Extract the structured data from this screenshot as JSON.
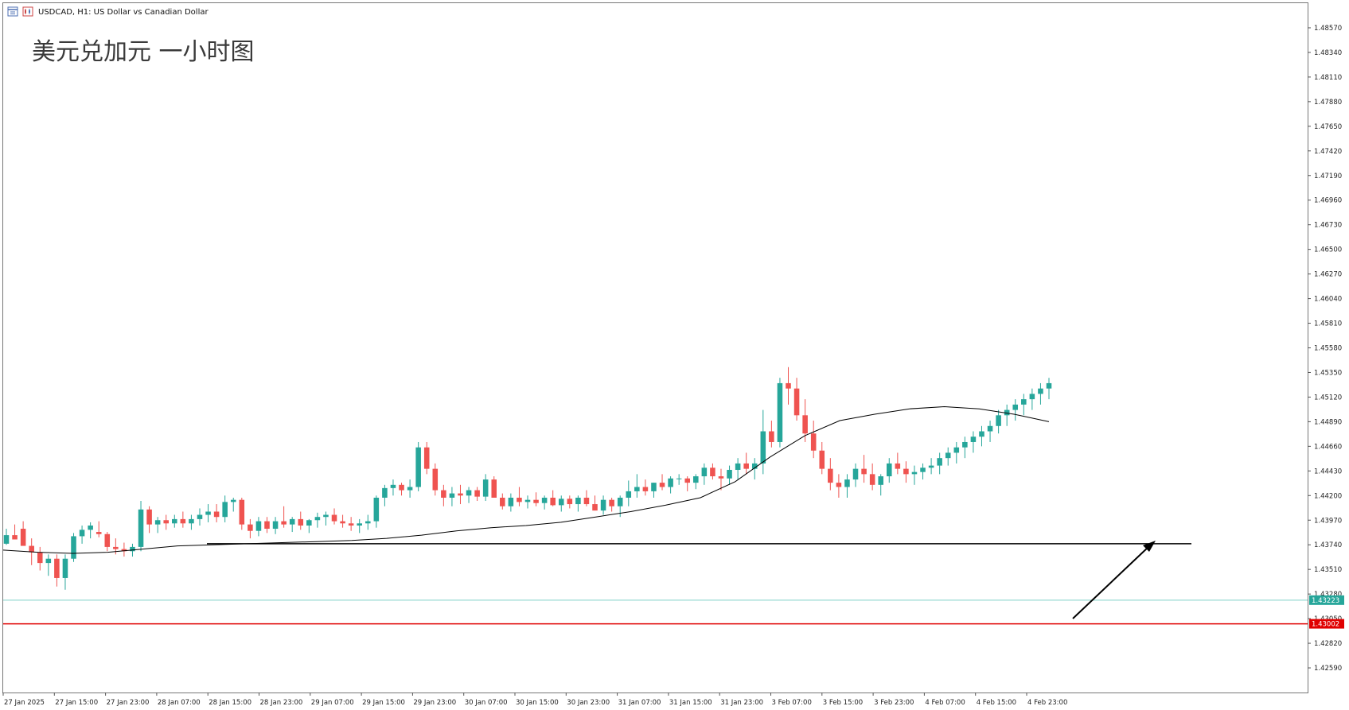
{
  "header": {
    "symbol_line": "USDCAD, H1:  US Dollar vs Canadian Dollar",
    "chart_title": "美元兑加元 一小时图"
  },
  "colors": {
    "bull": "#26a69a",
    "bear": "#ef5350",
    "current_price_line": "#7fd1c6",
    "support_line": "#e00000",
    "moving_average": "#000000",
    "horizontal_level": "#000000",
    "arrow": "#000000"
  },
  "chart_data": {
    "type": "candlestick",
    "title": "美元兑加元 一小时图",
    "instrument": "USDCAD",
    "timeframe": "H1",
    "ylim": [
      1.4236,
      1.488
    ],
    "price_ticks": [
      "1.48570",
      "1.48340",
      "1.48110",
      "1.47880",
      "1.47650",
      "1.47420",
      "1.47190",
      "1.46960",
      "1.46730",
      "1.46500",
      "1.46270",
      "1.46040",
      "1.45810",
      "1.45580",
      "1.45350",
      "1.45120",
      "1.44890",
      "1.44660",
      "1.44430",
      "1.44200",
      "1.43970",
      "1.43740",
      "1.43510",
      "1.43280",
      "1.43050",
      "1.42820",
      "1.42590"
    ],
    "time_labels": [
      "27 Jan 2025",
      "27 Jan 15:00",
      "27 Jan 23:00",
      "28 Jan 07:00",
      "28 Jan 15:00",
      "28 Jan 23:00",
      "29 Jan 07:00",
      "29 Jan 15:00",
      "29 Jan 23:00",
      "30 Jan 07:00",
      "30 Jan 15:00",
      "30 Jan 23:00",
      "31 Jan 07:00",
      "31 Jan 15:00",
      "31 Jan 23:00",
      "3 Feb 07:00",
      "3 Feb 15:00",
      "3 Feb 23:00",
      "4 Feb 07:00",
      "4 Feb 15:00",
      "4 Feb 23:00"
    ],
    "current_price": "1.43223",
    "support_price": "1.43002",
    "horizontal_level": 1.4375,
    "moving_average": [
      1.4369,
      1.4367,
      1.4366,
      1.4367,
      1.437,
      1.4373,
      1.4374,
      1.4375,
      1.4376,
      1.4377,
      1.4378,
      1.438,
      1.4383,
      1.4387,
      1.439,
      1.4392,
      1.4395,
      1.44,
      1.4405,
      1.4411,
      1.4418,
      1.4433,
      1.4456,
      1.4476,
      1.449,
      1.4496,
      1.4501,
      1.4503,
      1.4501,
      1.4496,
      1.4489
    ],
    "candles": [
      [
        1.4375,
        1.4389,
        1.4374,
        1.4383
      ],
      [
        1.4383,
        1.4393,
        1.4379,
        1.4379
      ],
      [
        1.4389,
        1.4396,
        1.4376,
        1.4373
      ],
      [
        1.4373,
        1.438,
        1.4355,
        1.4367
      ],
      [
        1.4367,
        1.4372,
        1.435,
        1.4357
      ],
      [
        1.4357,
        1.4365,
        1.4345,
        1.4361
      ],
      [
        1.4361,
        1.4365,
        1.4335,
        1.4343
      ],
      [
        1.4343,
        1.4365,
        1.4332,
        1.4361
      ],
      [
        1.4361,
        1.4385,
        1.4358,
        1.4382
      ],
      [
        1.4382,
        1.4392,
        1.4375,
        1.4388
      ],
      [
        1.4388,
        1.4395,
        1.438,
        1.4392
      ],
      [
        1.4386,
        1.4396,
        1.4381,
        1.4384
      ],
      [
        1.4384,
        1.4386,
        1.4368,
        1.4372
      ],
      [
        1.4372,
        1.438,
        1.4365,
        1.437
      ],
      [
        1.437,
        1.4376,
        1.4363,
        1.4368
      ],
      [
        1.4368,
        1.4375,
        1.4363,
        1.4372
      ],
      [
        1.4372,
        1.4415,
        1.4368,
        1.4407
      ],
      [
        1.4407,
        1.441,
        1.4385,
        1.4393
      ],
      [
        1.4393,
        1.44,
        1.4385,
        1.4397
      ],
      [
        1.4397,
        1.4402,
        1.4388,
        1.4394
      ],
      [
        1.4394,
        1.4402,
        1.439,
        1.4398
      ],
      [
        1.4398,
        1.4405,
        1.439,
        1.4394
      ],
      [
        1.4394,
        1.4402,
        1.4388,
        1.4398
      ],
      [
        1.4398,
        1.4408,
        1.4392,
        1.4402
      ],
      [
        1.4402,
        1.4412,
        1.4395,
        1.4405
      ],
      [
        1.4405,
        1.4412,
        1.4395,
        1.44
      ],
      [
        1.44,
        1.442,
        1.4395,
        1.4414
      ],
      [
        1.4414,
        1.4418,
        1.4405,
        1.4416
      ],
      [
        1.4416,
        1.4418,
        1.4388,
        1.4393
      ],
      [
        1.4393,
        1.4398,
        1.438,
        1.4387
      ],
      [
        1.4387,
        1.44,
        1.4382,
        1.4396
      ],
      [
        1.4396,
        1.44,
        1.4385,
        1.4389
      ],
      [
        1.4389,
        1.44,
        1.4384,
        1.4396
      ],
      [
        1.4396,
        1.441,
        1.439,
        1.4393
      ],
      [
        1.4393,
        1.44,
        1.4386,
        1.4398
      ],
      [
        1.4398,
        1.4405,
        1.4388,
        1.4392
      ],
      [
        1.4392,
        1.4398,
        1.4385,
        1.4397
      ],
      [
        1.4397,
        1.4404,
        1.439,
        1.44
      ],
      [
        1.44,
        1.4405,
        1.4392,
        1.4402
      ],
      [
        1.4402,
        1.4408,
        1.4393,
        1.4396
      ],
      [
        1.4396,
        1.4402,
        1.439,
        1.4394
      ],
      [
        1.4394,
        1.44,
        1.4387,
        1.4392
      ],
      [
        1.4392,
        1.4398,
        1.4385,
        1.4394
      ],
      [
        1.4394,
        1.4402,
        1.4388,
        1.4396
      ],
      [
        1.4396,
        1.442,
        1.439,
        1.4418
      ],
      [
        1.4418,
        1.443,
        1.441,
        1.4427
      ],
      [
        1.4427,
        1.4435,
        1.442,
        1.443
      ],
      [
        1.443,
        1.4432,
        1.442,
        1.4425
      ],
      [
        1.4425,
        1.4435,
        1.4418,
        1.4428
      ],
      [
        1.4428,
        1.447,
        1.4424,
        1.4465
      ],
      [
        1.4465,
        1.447,
        1.444,
        1.4445
      ],
      [
        1.4445,
        1.445,
        1.442,
        1.4425
      ],
      [
        1.4425,
        1.443,
        1.441,
        1.4418
      ],
      [
        1.4418,
        1.4428,
        1.441,
        1.4422
      ],
      [
        1.4422,
        1.443,
        1.4412,
        1.442
      ],
      [
        1.442,
        1.4428,
        1.4413,
        1.4425
      ],
      [
        1.4425,
        1.4428,
        1.4415,
        1.4419
      ],
      [
        1.4419,
        1.444,
        1.4415,
        1.4435
      ],
      [
        1.4435,
        1.4438,
        1.4418,
        1.4418
      ],
      [
        1.4418,
        1.4422,
        1.4407,
        1.441
      ],
      [
        1.441,
        1.4422,
        1.4405,
        1.4418
      ],
      [
        1.4418,
        1.4428,
        1.441,
        1.4414
      ],
      [
        1.4414,
        1.442,
        1.4408,
        1.4416
      ],
      [
        1.4416,
        1.4423,
        1.441,
        1.4413
      ],
      [
        1.4413,
        1.442,
        1.4407,
        1.4418
      ],
      [
        1.4418,
        1.4425,
        1.441,
        1.4411
      ],
      [
        1.4411,
        1.442,
        1.4405,
        1.4417
      ],
      [
        1.4417,
        1.442,
        1.4408,
        1.4412
      ],
      [
        1.4412,
        1.442,
        1.4405,
        1.4418
      ],
      [
        1.4418,
        1.4425,
        1.441,
        1.4412
      ],
      [
        1.4412,
        1.442,
        1.4406,
        1.4406
      ],
      [
        1.4406,
        1.442,
        1.4402,
        1.4416
      ],
      [
        1.4416,
        1.4418,
        1.4405,
        1.441
      ],
      [
        1.441,
        1.442,
        1.44,
        1.4418
      ],
      [
        1.4418,
        1.4434,
        1.441,
        1.4424
      ],
      [
        1.4424,
        1.444,
        1.4418,
        1.4428
      ],
      [
        1.4428,
        1.4435,
        1.442,
        1.4424
      ],
      [
        1.4424,
        1.4432,
        1.4418,
        1.4432
      ],
      [
        1.4432,
        1.444,
        1.4425,
        1.4428
      ],
      [
        1.4428,
        1.4438,
        1.4422,
        1.4436
      ],
      [
        1.4436,
        1.444,
        1.443,
        1.4436
      ],
      [
        1.4436,
        1.4438,
        1.4424,
        1.4432
      ],
      [
        1.4432,
        1.444,
        1.4426,
        1.4438
      ],
      [
        1.4438,
        1.445,
        1.443,
        1.4446
      ],
      [
        1.4446,
        1.445,
        1.4435,
        1.4438
      ],
      [
        1.4438,
        1.4445,
        1.4425,
        1.4436
      ],
      [
        1.4436,
        1.4448,
        1.443,
        1.4444
      ],
      [
        1.4444,
        1.4455,
        1.4435,
        1.445
      ],
      [
        1.445,
        1.446,
        1.444,
        1.4445
      ],
      [
        1.4445,
        1.4455,
        1.4435,
        1.445
      ],
      [
        1.445,
        1.45,
        1.444,
        1.448
      ],
      [
        1.448,
        1.449,
        1.4465,
        1.447
      ],
      [
        1.447,
        1.453,
        1.4465,
        1.4525
      ],
      [
        1.4525,
        1.454,
        1.4505,
        1.452
      ],
      [
        1.452,
        1.453,
        1.449,
        1.4495
      ],
      [
        1.4495,
        1.451,
        1.447,
        1.4478
      ],
      [
        1.4478,
        1.449,
        1.4455,
        1.4462
      ],
      [
        1.4462,
        1.447,
        1.444,
        1.4445
      ],
      [
        1.4445,
        1.4455,
        1.4425,
        1.4432
      ],
      [
        1.4432,
        1.444,
        1.4418,
        1.4428
      ],
      [
        1.4428,
        1.444,
        1.4418,
        1.4435
      ],
      [
        1.4435,
        1.445,
        1.4428,
        1.4445
      ],
      [
        1.4445,
        1.4458,
        1.4432,
        1.444
      ],
      [
        1.444,
        1.445,
        1.4425,
        1.443
      ],
      [
        1.443,
        1.444,
        1.442,
        1.4438
      ],
      [
        1.4438,
        1.4455,
        1.4432,
        1.445
      ],
      [
        1.445,
        1.446,
        1.444,
        1.4445
      ],
      [
        1.4445,
        1.4452,
        1.4432,
        1.444
      ],
      [
        1.444,
        1.4448,
        1.443,
        1.4442
      ],
      [
        1.4442,
        1.445,
        1.4435,
        1.4446
      ],
      [
        1.4446,
        1.4455,
        1.444,
        1.4448
      ],
      [
        1.4448,
        1.446,
        1.444,
        1.4455
      ],
      [
        1.4455,
        1.4465,
        1.4448,
        1.446
      ],
      [
        1.446,
        1.447,
        1.445,
        1.4465
      ],
      [
        1.4465,
        1.4475,
        1.4455,
        1.447
      ],
      [
        1.447,
        1.448,
        1.446,
        1.4475
      ],
      [
        1.4475,
        1.4485,
        1.4466,
        1.448
      ],
      [
        1.448,
        1.449,
        1.447,
        1.4485
      ],
      [
        1.4485,
        1.45,
        1.4478,
        1.4495
      ],
      [
        1.4495,
        1.4505,
        1.4485,
        1.45
      ],
      [
        1.45,
        1.451,
        1.449,
        1.4505
      ],
      [
        1.4505,
        1.4515,
        1.4495,
        1.451
      ],
      [
        1.451,
        1.452,
        1.45,
        1.4515
      ],
      [
        1.4515,
        1.4525,
        1.4505,
        1.452
      ],
      [
        1.452,
        1.453,
        1.451,
        1.4525
      ]
    ]
  }
}
